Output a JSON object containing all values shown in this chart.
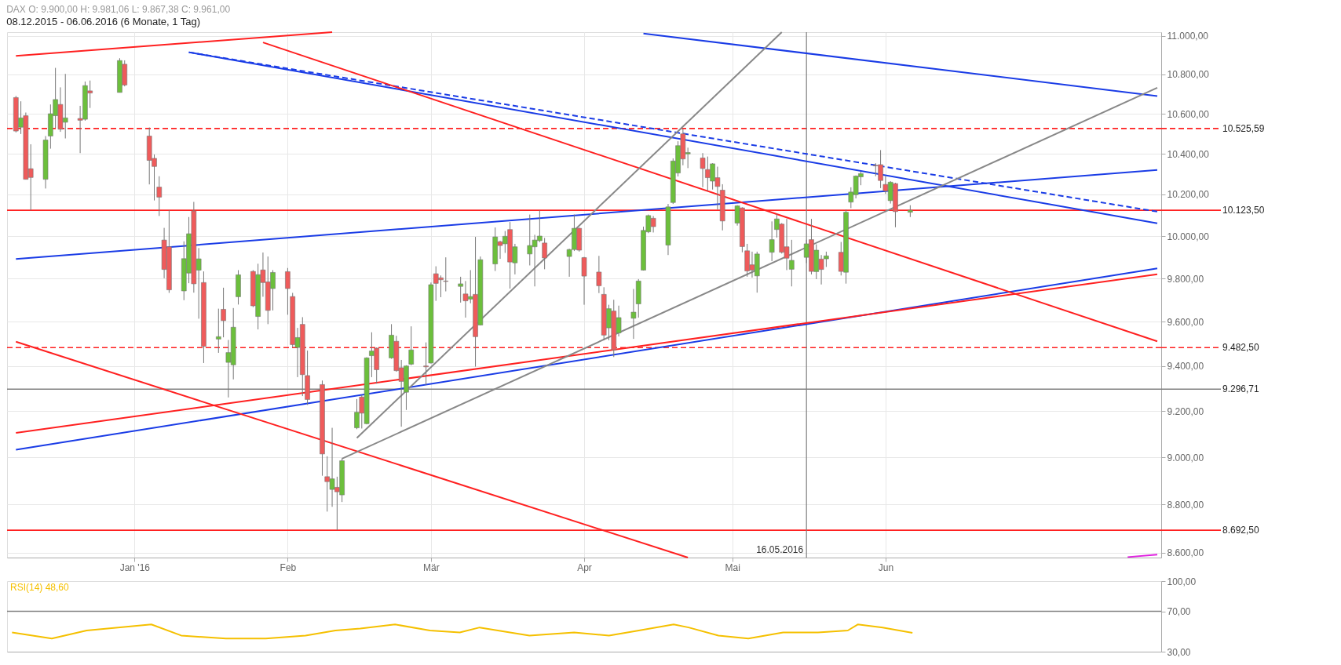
{
  "chart_data": [
    {
      "type": "candlestick",
      "title": "DAX  O: 9.900,00  H: 9.981,06  L: 9.867,38  C: 9.961,00",
      "subtitle": "08.12.2015 - 06.06.2016 (6 Monate, 1 Tag)",
      "x": [
        "2015-12-08",
        "2015-12-09",
        "2015-12-10",
        "2015-12-11",
        "2015-12-14",
        "2015-12-15",
        "2015-12-16",
        "2015-12-17",
        "2015-12-18",
        "2015-12-21",
        "2015-12-22",
        "2015-12-23",
        "2015-12-29",
        "2015-12-30",
        "2016-01-04",
        "2016-01-05",
        "2016-01-06",
        "2016-01-07",
        "2016-01-08",
        "2016-01-11",
        "2016-01-12",
        "2016-01-13",
        "2016-01-14",
        "2016-01-15",
        "2016-01-18",
        "2016-01-19",
        "2016-01-20",
        "2016-01-21",
        "2016-01-22",
        "2016-01-25",
        "2016-01-26",
        "2016-01-27",
        "2016-01-28",
        "2016-01-29",
        "2016-02-01",
        "2016-02-02",
        "2016-02-03",
        "2016-02-04",
        "2016-02-05",
        "2016-02-08",
        "2016-02-09",
        "2016-02-10",
        "2016-02-11",
        "2016-02-12",
        "2016-02-15",
        "2016-02-16",
        "2016-02-17",
        "2016-02-18",
        "2016-02-19",
        "2016-02-22",
        "2016-02-23",
        "2016-02-24",
        "2016-02-25",
        "2016-02-26",
        "2016-02-29",
        "2016-03-01",
        "2016-03-02",
        "2016-03-03",
        "2016-03-04",
        "2016-03-07",
        "2016-03-08",
        "2016-03-09",
        "2016-03-10",
        "2016-03-11",
        "2016-03-14",
        "2016-03-15",
        "2016-03-16",
        "2016-03-17",
        "2016-03-18",
        "2016-03-21",
        "2016-03-22",
        "2016-03-23",
        "2016-03-24",
        "2016-03-29",
        "2016-03-30",
        "2016-03-31",
        "2016-04-01",
        "2016-04-04",
        "2016-04-05",
        "2016-04-06",
        "2016-04-07",
        "2016-04-08",
        "2016-04-11",
        "2016-04-12",
        "2016-04-13",
        "2016-04-14",
        "2016-04-15",
        "2016-04-18",
        "2016-04-19",
        "2016-04-20",
        "2016-04-21",
        "2016-04-22",
        "2016-04-25",
        "2016-04-26",
        "2016-04-27",
        "2016-04-28",
        "2016-04-29",
        "2016-05-02",
        "2016-05-03",
        "2016-05-04",
        "2016-05-05",
        "2016-05-06",
        "2016-05-09",
        "2016-05-10",
        "2016-05-11",
        "2016-05-12",
        "2016-05-13",
        "2016-05-16",
        "2016-05-17",
        "2016-05-18",
        "2016-05-19",
        "2016-05-20",
        "2016-05-23",
        "2016-05-24",
        "2016-05-25",
        "2016-05-26",
        "2016-05-27",
        "2016-05-30",
        "2016-05-31",
        "2016-06-01",
        "2016-06-02",
        "2016-06-03",
        "2016-06-06"
      ],
      "ohlc": [
        [
          10682,
          10690,
          10506,
          10513
        ],
        [
          10532,
          10663,
          10498,
          10579
        ],
        [
          10590,
          10606,
          10274,
          10274
        ],
        [
          10326,
          10447,
          10123,
          10283
        ],
        [
          10274,
          10488,
          10229,
          10468
        ],
        [
          10488,
          10647,
          10425,
          10600
        ],
        [
          10590,
          10834,
          10528,
          10672
        ],
        [
          10647,
          10734,
          10509,
          10522
        ],
        [
          10557,
          10803,
          10476,
          10579
        ],
        [
          10576,
          10640,
          10403,
          10567
        ],
        [
          10572,
          10764,
          10565,
          10743
        ],
        [
          10716,
          10769,
          10629,
          10705
        ],
        [
          10708,
          10884,
          10708,
          10872
        ],
        [
          10853,
          10873,
          10739,
          10746
        ],
        [
          10488,
          10531,
          10249,
          10367
        ],
        [
          10377,
          10396,
          10171,
          10337
        ],
        [
          10236,
          10289,
          10096,
          10187
        ],
        [
          9981,
          10039,
          9801,
          9842
        ],
        [
          9949,
          10124,
          9733,
          9747
        ],
        [
          9742,
          9975,
          9699,
          9893
        ],
        [
          9825,
          10091,
          9778,
          10011
        ],
        [
          10120,
          10164,
          9734,
          9775
        ],
        [
          9839,
          9943,
          9614,
          9892
        ],
        [
          9781,
          9833,
          9413,
          9488
        ],
        [
          9521,
          9660,
          9459,
          9532
        ],
        [
          9657,
          9757,
          9529,
          9605
        ],
        [
          9416,
          9517,
          9260,
          9460
        ],
        [
          9405,
          9663,
          9340,
          9575
        ],
        [
          9715,
          9839,
          9679,
          9817
        ],
        [
          9833,
          9839,
          9667,
          9673
        ],
        [
          9624,
          9869,
          9565,
          9818
        ],
        [
          9840,
          9922,
          9715,
          9781
        ],
        [
          9784,
          9903,
          9589,
          9652
        ],
        [
          9753,
          9839,
          9652,
          9828
        ],
        [
          9832,
          9849,
          9632,
          9753
        ],
        [
          9716,
          9733,
          9483,
          9496
        ],
        [
          9483,
          9572,
          9350,
          9528
        ],
        [
          9588,
          9621,
          9266,
          9361
        ],
        [
          9357,
          9469,
          9227,
          9251
        ],
        [
          9317,
          9335,
          8921,
          9014
        ],
        [
          8917,
          9004,
          8770,
          8896
        ],
        [
          8863,
          9127,
          8790,
          8908
        ],
        [
          8872,
          8917,
          8692.5,
          8853
        ],
        [
          8840,
          8995,
          8810,
          8985
        ],
        [
          9127,
          9253,
          9121,
          9195
        ],
        [
          9262,
          9271,
          9124,
          9191
        ],
        [
          9145,
          9439,
          9142,
          9436
        ],
        [
          9446,
          9552,
          9350,
          9467
        ],
        [
          9480,
          9483,
          9321,
          9383
        ],
        [
          9436,
          9589,
          9432,
          9539
        ],
        [
          9511,
          9536,
          9374,
          9379
        ],
        [
          9392,
          9427,
          9132,
          9331
        ],
        [
          9283,
          9403,
          9205,
          9400
        ],
        [
          9408,
          9579,
          9403,
          9472
        ],
        [
          9400,
          9506,
          9315,
          9396
        ],
        [
          9413,
          9781,
          9411,
          9771
        ],
        [
          9822,
          9857,
          9696,
          9777
        ],
        [
          9803,
          9814,
          9713,
          9794
        ],
        [
          9788,
          9899,
          9740,
          9786
        ],
        [
          9763,
          9808,
          9688,
          9775
        ],
        [
          9728,
          9788,
          9619,
          9696
        ],
        [
          9704,
          9839,
          9685,
          9716
        ],
        [
          9726,
          9996,
          9397,
          9532
        ],
        [
          9585,
          9903,
          9583,
          9888
        ],
        [
          9868,
          10041,
          9835,
          9996
        ],
        [
          9973,
          9978,
          9892,
          9955
        ],
        [
          9963,
          10024,
          9920,
          9999
        ],
        [
          10031,
          10067,
          9753,
          9877
        ],
        [
          9873,
          9963,
          9819,
          9949
        ],
        [
          9915,
          10103,
          9861,
          9955
        ],
        [
          9949,
          10006,
          9763,
          9981
        ],
        [
          9978,
          10123,
          9971,
          10000
        ],
        [
          9967,
          9991,
          9843,
          9896
        ],
        [
          9903,
          9940,
          9808,
          9936
        ],
        [
          9936,
          10103,
          9929,
          10037
        ],
        [
          10037,
          10040,
          9926,
          9933
        ],
        [
          9898,
          9901,
          9678,
          9811
        ],
        [
          9830,
          9906,
          9732,
          9766
        ],
        [
          9726,
          9759,
          9516,
          9539
        ],
        [
          9572,
          9678,
          9516,
          9660
        ],
        [
          9649,
          9701,
          9440,
          9472
        ],
        [
          9549,
          9674,
          9533,
          9619
        ],
        [
          9616,
          9751,
          9522,
          9644
        ],
        [
          9682,
          9797,
          9619,
          9788
        ],
        [
          9839,
          10045,
          9837,
          10027
        ],
        [
          10020,
          10103,
          10014,
          10098
        ],
        [
          10085,
          10096,
          10017,
          10045
        ],
        [
          9957,
          10154,
          9910,
          10140
        ],
        [
          10161,
          10377,
          10154,
          10364
        ],
        [
          10305,
          10462,
          10288,
          10440
        ],
        [
          10499,
          10525,
          10343,
          10374
        ],
        [
          10399,
          10430,
          10329,
          10406
        ],
        [
          10379,
          10403,
          10235,
          10327
        ],
        [
          10322,
          10386,
          10217,
          10282
        ],
        [
          10265,
          10353,
          10224,
          10350
        ],
        [
          10282,
          10336,
          10127,
          10239
        ],
        [
          10221,
          10250,
          10027,
          10072
        ],
        [
          10062,
          10148,
          10050,
          10145
        ],
        [
          10135,
          10138,
          9923,
          9950
        ],
        [
          9930,
          9963,
          9808,
          9835
        ],
        [
          9864,
          9926,
          9804,
          9839
        ],
        [
          9812,
          9926,
          9734,
          9915
        ],
        [
          9923,
          10070,
          9881,
          9983
        ],
        [
          10031,
          10107,
          9993,
          10082
        ],
        [
          10057,
          10062,
          9917,
          9923
        ],
        [
          9949,
          10082,
          9839,
          9895
        ],
        [
          9843,
          9982,
          9763,
          9885
        ],
        [
          9899,
          9982,
          9872,
          9963
        ],
        [
          9983,
          10082,
          9819,
          9833
        ],
        [
          9832,
          9961,
          9797,
          9933
        ],
        [
          9891,
          9910,
          9772,
          9842
        ],
        [
          9892,
          9926,
          9854,
          9906
        ],
        [
          9923,
          9972,
          9814,
          9833
        ],
        [
          9829,
          10127,
          9776,
          10114
        ],
        [
          10163,
          10235,
          10134,
          10212
        ],
        [
          10199,
          10293,
          10181,
          10290
        ],
        [
          10286,
          10311,
          10245,
          10302
        ],
        [
          10343,
          10353,
          10289,
          10340
        ],
        [
          10346,
          10418,
          10231,
          10268
        ],
        [
          10249,
          10289,
          10203,
          10217
        ],
        [
          10170,
          10265,
          10156,
          10260
        ],
        [
          10253,
          10257,
          10042,
          10117
        ],
        [
          10114,
          10148,
          10091,
          10123.5
        ]
      ],
      "colors": [
        "#ef5b5b",
        "#6cbf3c",
        "#ef5b5b",
        "#ef5b5b",
        "#6cbf3c",
        "#6cbf3c",
        "#6cbf3c",
        "#ef5b5b",
        "#6cbf3c",
        "#ef5b5b",
        "#6cbf3c",
        "#ef5b5b",
        "#6cbf3c",
        "#ef5b5b",
        "#ef5b5b",
        "#ef5b5b",
        "#ef5b5b",
        "#ef5b5b",
        "#ef5b5b",
        "#6cbf3c",
        "#6cbf3c",
        "#ef5b5b",
        "#6cbf3c",
        "#ef5b5b",
        "#6cbf3c",
        "#ef5b5b",
        "#6cbf3c",
        "#6cbf3c",
        "#6cbf3c",
        "#ef5b5b",
        "#6cbf3c",
        "#ef5b5b",
        "#ef5b5b",
        "#6cbf3c",
        "#ef5b5b",
        "#ef5b5b",
        "#6cbf3c",
        "#ef5b5b",
        "#ef5b5b",
        "#ef5b5b",
        "#ef5b5b",
        "#6cbf3c",
        "#ef5b5b",
        "#6cbf3c",
        "#6cbf3c",
        "#ef5b5b",
        "#6cbf3c",
        "#6cbf3c",
        "#ef5b5b",
        "#6cbf3c",
        "#ef5b5b",
        "#ef5b5b",
        "#6cbf3c",
        "#6cbf3c",
        "#ef5b5b",
        "#6cbf3c",
        "#ef5b5b",
        "#ef5b5b",
        "#ef5b5b",
        "#6cbf3c",
        "#ef5b5b",
        "#6cbf3c",
        "#ef5b5b",
        "#6cbf3c",
        "#6cbf3c",
        "#ef5b5b",
        "#6cbf3c",
        "#ef5b5b",
        "#6cbf3c",
        "#6cbf3c",
        "#6cbf3c",
        "#6cbf3c",
        "#ef5b5b",
        "#6cbf3c",
        "#6cbf3c",
        "#ef5b5b",
        "#ef5b5b",
        "#ef5b5b",
        "#ef5b5b",
        "#6cbf3c",
        "#ef5b5b",
        "#6cbf3c",
        "#6cbf3c",
        "#6cbf3c",
        "#6cbf3c",
        "#6cbf3c",
        "#ef5b5b",
        "#6cbf3c",
        "#6cbf3c",
        "#6cbf3c",
        "#ef5b5b",
        "#6cbf3c",
        "#ef5b5b",
        "#ef5b5b",
        "#6cbf3c",
        "#ef5b5b",
        "#ef5b5b",
        "#6cbf3c",
        "#ef5b5b",
        "#ef5b5b",
        "#ef5b5b",
        "#6cbf3c",
        "#6cbf3c",
        "#6cbf3c",
        "#ef5b5b",
        "#ef5b5b",
        "#6cbf3c",
        "#6cbf3c",
        "#ef5b5b",
        "#6cbf3c",
        "#ef5b5b",
        "#6cbf3c",
        "#ef5b5b",
        "#6cbf3c",
        "#6cbf3c",
        "#6cbf3c",
        "#6cbf3c",
        "#ef5b5b",
        "#ef5b5b",
        "#ef5b5b",
        "#6cbf3c",
        "#ef5b5b",
        "#6cbf3c"
      ],
      "series": [
        {
          "type": "line",
          "color": "#1a3ce6",
          "line_style": "solid",
          "x": [
            "2016-04-13",
            "2016-07-26"
          ],
          "values": [
            11013,
            10690
          ]
        },
        {
          "type": "line",
          "color": "#1a3ce6",
          "line_style": "solid",
          "x": [
            "2016-01-12",
            "2016-07-26"
          ],
          "values": [
            10915,
            10061
          ]
        },
        {
          "type": "line",
          "color": "#1a3ce6",
          "line_style": "dashed",
          "x": [
            "2016-01-12",
            "2016-07-26"
          ],
          "values": [
            10915,
            10117
          ]
        },
        {
          "type": "line",
          "color": "#1a3ce6",
          "line_style": "solid",
          "x": [
            "2015-12-08",
            "2016-07-26"
          ],
          "values": [
            9891,
            10320
          ]
        },
        {
          "type": "line",
          "color": "#1a3ce6",
          "line_style": "solid",
          "x": [
            "2015-12-08",
            "2016-07-26"
          ],
          "values": [
            9032,
            9847
          ]
        },
        {
          "type": "line",
          "color": "#ff2020",
          "line_style": "solid",
          "x": [
            "2015-12-08",
            "2016-07-26"
          ],
          "values": [
            9105,
            9820
          ]
        },
        {
          "type": "line",
          "color": "#ff2020",
          "line_style": "solid",
          "x": [
            "2016-01-27",
            "2016-07-26"
          ],
          "values": [
            10966,
            9511
          ]
        },
        {
          "type": "line",
          "color": "#ff2020",
          "line_style": "solid",
          "x": [
            "2015-12-08",
            "2016-04-22"
          ],
          "values": [
            9509,
            8580
          ]
        },
        {
          "type": "line",
          "color": "#ff2020",
          "line_style": "solid",
          "x": [
            "2015-12-08",
            "2016-02-10"
          ],
          "values": [
            10896,
            11020
          ]
        },
        {
          "type": "line",
          "color": "#888888",
          "line_style": "solid",
          "x": [
            "2016-02-15",
            "2016-05-11"
          ],
          "values": [
            9083,
            11020
          ]
        },
        {
          "type": "line",
          "color": "#888888",
          "line_style": "solid",
          "x": [
            "2016-02-12",
            "2016-07-26"
          ],
          "values": [
            8994,
            10732
          ]
        },
        {
          "type": "line",
          "color": "#e020e0",
          "line_style": "solid",
          "x": [
            "2016-07-20",
            "2016-07-26"
          ],
          "values": [
            8582,
            8592
          ]
        }
      ],
      "xlim": [
        "2015-12-07",
        "2016-07-26"
      ],
      "xticks": [
        {
          "value": "2016-01-01",
          "label": "Jan '16"
        },
        {
          "value": "2016-02-01",
          "label": "Feb"
        },
        {
          "value": "2016-03-01",
          "label": "Mär"
        },
        {
          "value": "2016-04-01",
          "label": "Apr"
        },
        {
          "value": "2016-05-01",
          "label": "Mai"
        },
        {
          "value": "2016-06-01",
          "label": "Jun"
        }
      ],
      "ylim": [
        8580,
        11020
      ],
      "yticks": [
        {
          "value": 8600,
          "label": "8.600,00"
        },
        {
          "value": 8800,
          "label": "8.800,00"
        },
        {
          "value": 9000,
          "label": "9.000,00"
        },
        {
          "value": 9200,
          "label": "9.200,00"
        },
        {
          "value": 9400,
          "label": "9.400,00"
        },
        {
          "value": 9600,
          "label": "9.600,00"
        },
        {
          "value": 9800,
          "label": "9.800,00"
        },
        {
          "value": 10000,
          "label": "10.000,00"
        },
        {
          "value": 10200,
          "label": "10.200,00"
        },
        {
          "value": 10400,
          "label": "10.400,00"
        },
        {
          "value": 10600,
          "label": "10.600,00"
        },
        {
          "value": 10800,
          "label": "10.800,00"
        },
        {
          "value": 11000,
          "label": "11.000,00"
        }
      ],
      "log": "y",
      "grid": true,
      "ref_lines": [
        {
          "axis": "y",
          "value": 10525.59,
          "label": "10.525,59",
          "color": "#ff2020",
          "line_style": "dashed"
        },
        {
          "axis": "y",
          "value": 10123.5,
          "label": "10.123,50",
          "color": "#ff2020",
          "line_style": "solid"
        },
        {
          "axis": "y",
          "value": 9482.5,
          "label": "9.482,50",
          "color": "#ff2020",
          "line_style": "dashed"
        },
        {
          "axis": "y",
          "value": 9296.71,
          "label": "9.296,71",
          "color": "#808080",
          "line_style": "solid"
        },
        {
          "axis": "y",
          "value": 8692.5,
          "label": "8.692,50",
          "color": "#ff2020",
          "line_style": "solid"
        },
        {
          "axis": "x",
          "value": "2016-05-16",
          "label": "16.05.2016",
          "color": "#808080",
          "line_style": "solid"
        }
      ]
    },
    {
      "type": "line",
      "series": [
        {
          "name": "RSI(14) 48,60",
          "color": "#f5c000",
          "line_style": "solid",
          "x": [
            "2015-12-08",
            "2015-12-16",
            "2015-12-23",
            "2016-01-05",
            "2016-01-11",
            "2016-01-20",
            "2016-01-28",
            "2016-02-05",
            "2016-02-11",
            "2016-02-16",
            "2016-02-23",
            "2016-03-01",
            "2016-03-07",
            "2016-03-11",
            "2016-03-21",
            "2016-03-30",
            "2016-04-06",
            "2016-04-12",
            "2016-04-19",
            "2016-04-22",
            "2016-04-28",
            "2016-05-04",
            "2016-05-11",
            "2016-05-18",
            "2016-05-24",
            "2016-05-26",
            "2016-05-31",
            "2016-06-06"
          ],
          "values": [
            49,
            43,
            51,
            57,
            46,
            43,
            43,
            46,
            51,
            53,
            57,
            51,
            49,
            54,
            46,
            49,
            46,
            51,
            57,
            54,
            46,
            43,
            49,
            49,
            51,
            57,
            54,
            48.6
          ]
        }
      ],
      "xlim": [
        "2015-12-07",
        "2016-07-26"
      ],
      "ylim": [
        30,
        100
      ],
      "yticks": [
        {
          "value": 100,
          "label": "100,00"
        },
        {
          "value": 70,
          "label": "70,00"
        },
        {
          "value": 30,
          "label": "30,00"
        }
      ],
      "tick_labels": "y",
      "ref_lines": [
        {
          "axis": "y",
          "value": 70,
          "color": "#808080",
          "line_style": "solid"
        }
      ]
    }
  ]
}
